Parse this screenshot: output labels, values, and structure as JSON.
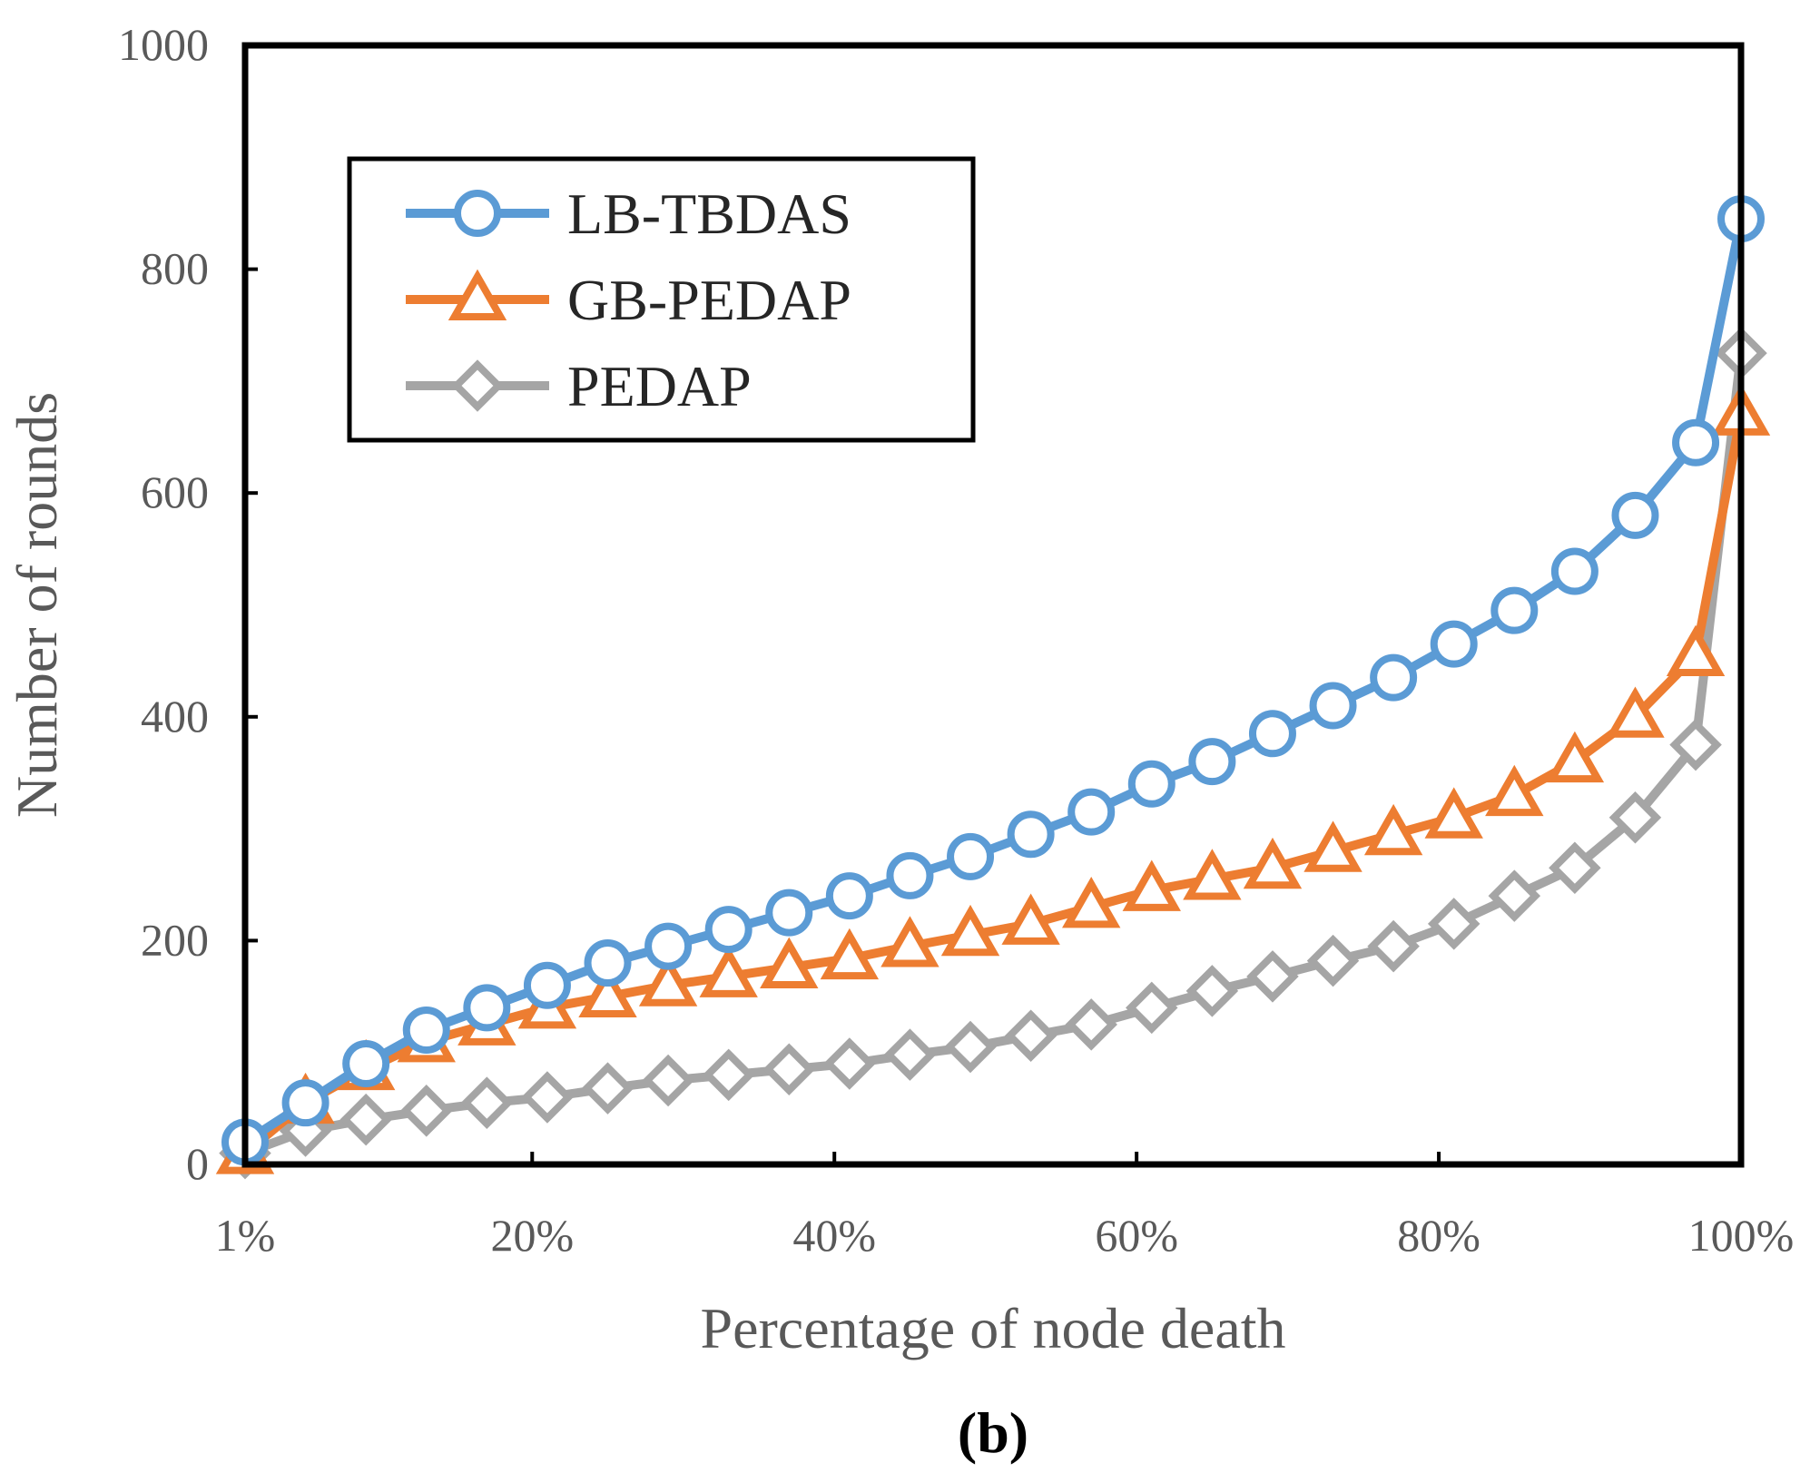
{
  "chart_data": {
    "type": "line",
    "title": "",
    "caption": "(b)",
    "xlabel": "Percentage of node death",
    "ylabel": "Number of rounds",
    "x_tick_labels": [
      "1%",
      "20%",
      "40%",
      "60%",
      "80%",
      "100%"
    ],
    "x_tick_positions": [
      1,
      20,
      40,
      60,
      80,
      100
    ],
    "y_ticks": [
      0,
      200,
      400,
      600,
      800,
      1000
    ],
    "xlim": [
      1,
      100
    ],
    "ylim": [
      0,
      1000
    ],
    "legend_position": "top-left",
    "x": [
      1,
      5,
      9,
      13,
      17,
      21,
      25,
      29,
      33,
      37,
      41,
      45,
      49,
      53,
      57,
      61,
      65,
      69,
      73,
      77,
      81,
      85,
      89,
      93,
      97,
      100
    ],
    "series": [
      {
        "name": "LB-TBDAS",
        "color": "#5b9bd5",
        "marker": "circle",
        "values": [
          20,
          55,
          90,
          120,
          140,
          160,
          180,
          195,
          210,
          225,
          240,
          258,
          275,
          295,
          315,
          340,
          360,
          385,
          410,
          435,
          465,
          495,
          530,
          580,
          645,
          845
        ]
      },
      {
        "name": "GB-PEDAP",
        "color": "#ed7d31",
        "marker": "triangle",
        "values": [
          10,
          55,
          85,
          110,
          125,
          140,
          150,
          160,
          168,
          176,
          184,
          195,
          205,
          215,
          230,
          245,
          255,
          265,
          280,
          295,
          310,
          330,
          360,
          400,
          455,
          670
        ]
      },
      {
        "name": "PEDAP",
        "color": "#a5a5a5",
        "marker": "diamond",
        "values": [
          10,
          30,
          40,
          48,
          55,
          60,
          68,
          75,
          80,
          85,
          90,
          98,
          105,
          115,
          125,
          140,
          155,
          168,
          182,
          195,
          215,
          240,
          265,
          310,
          375,
          725
        ]
      }
    ]
  }
}
